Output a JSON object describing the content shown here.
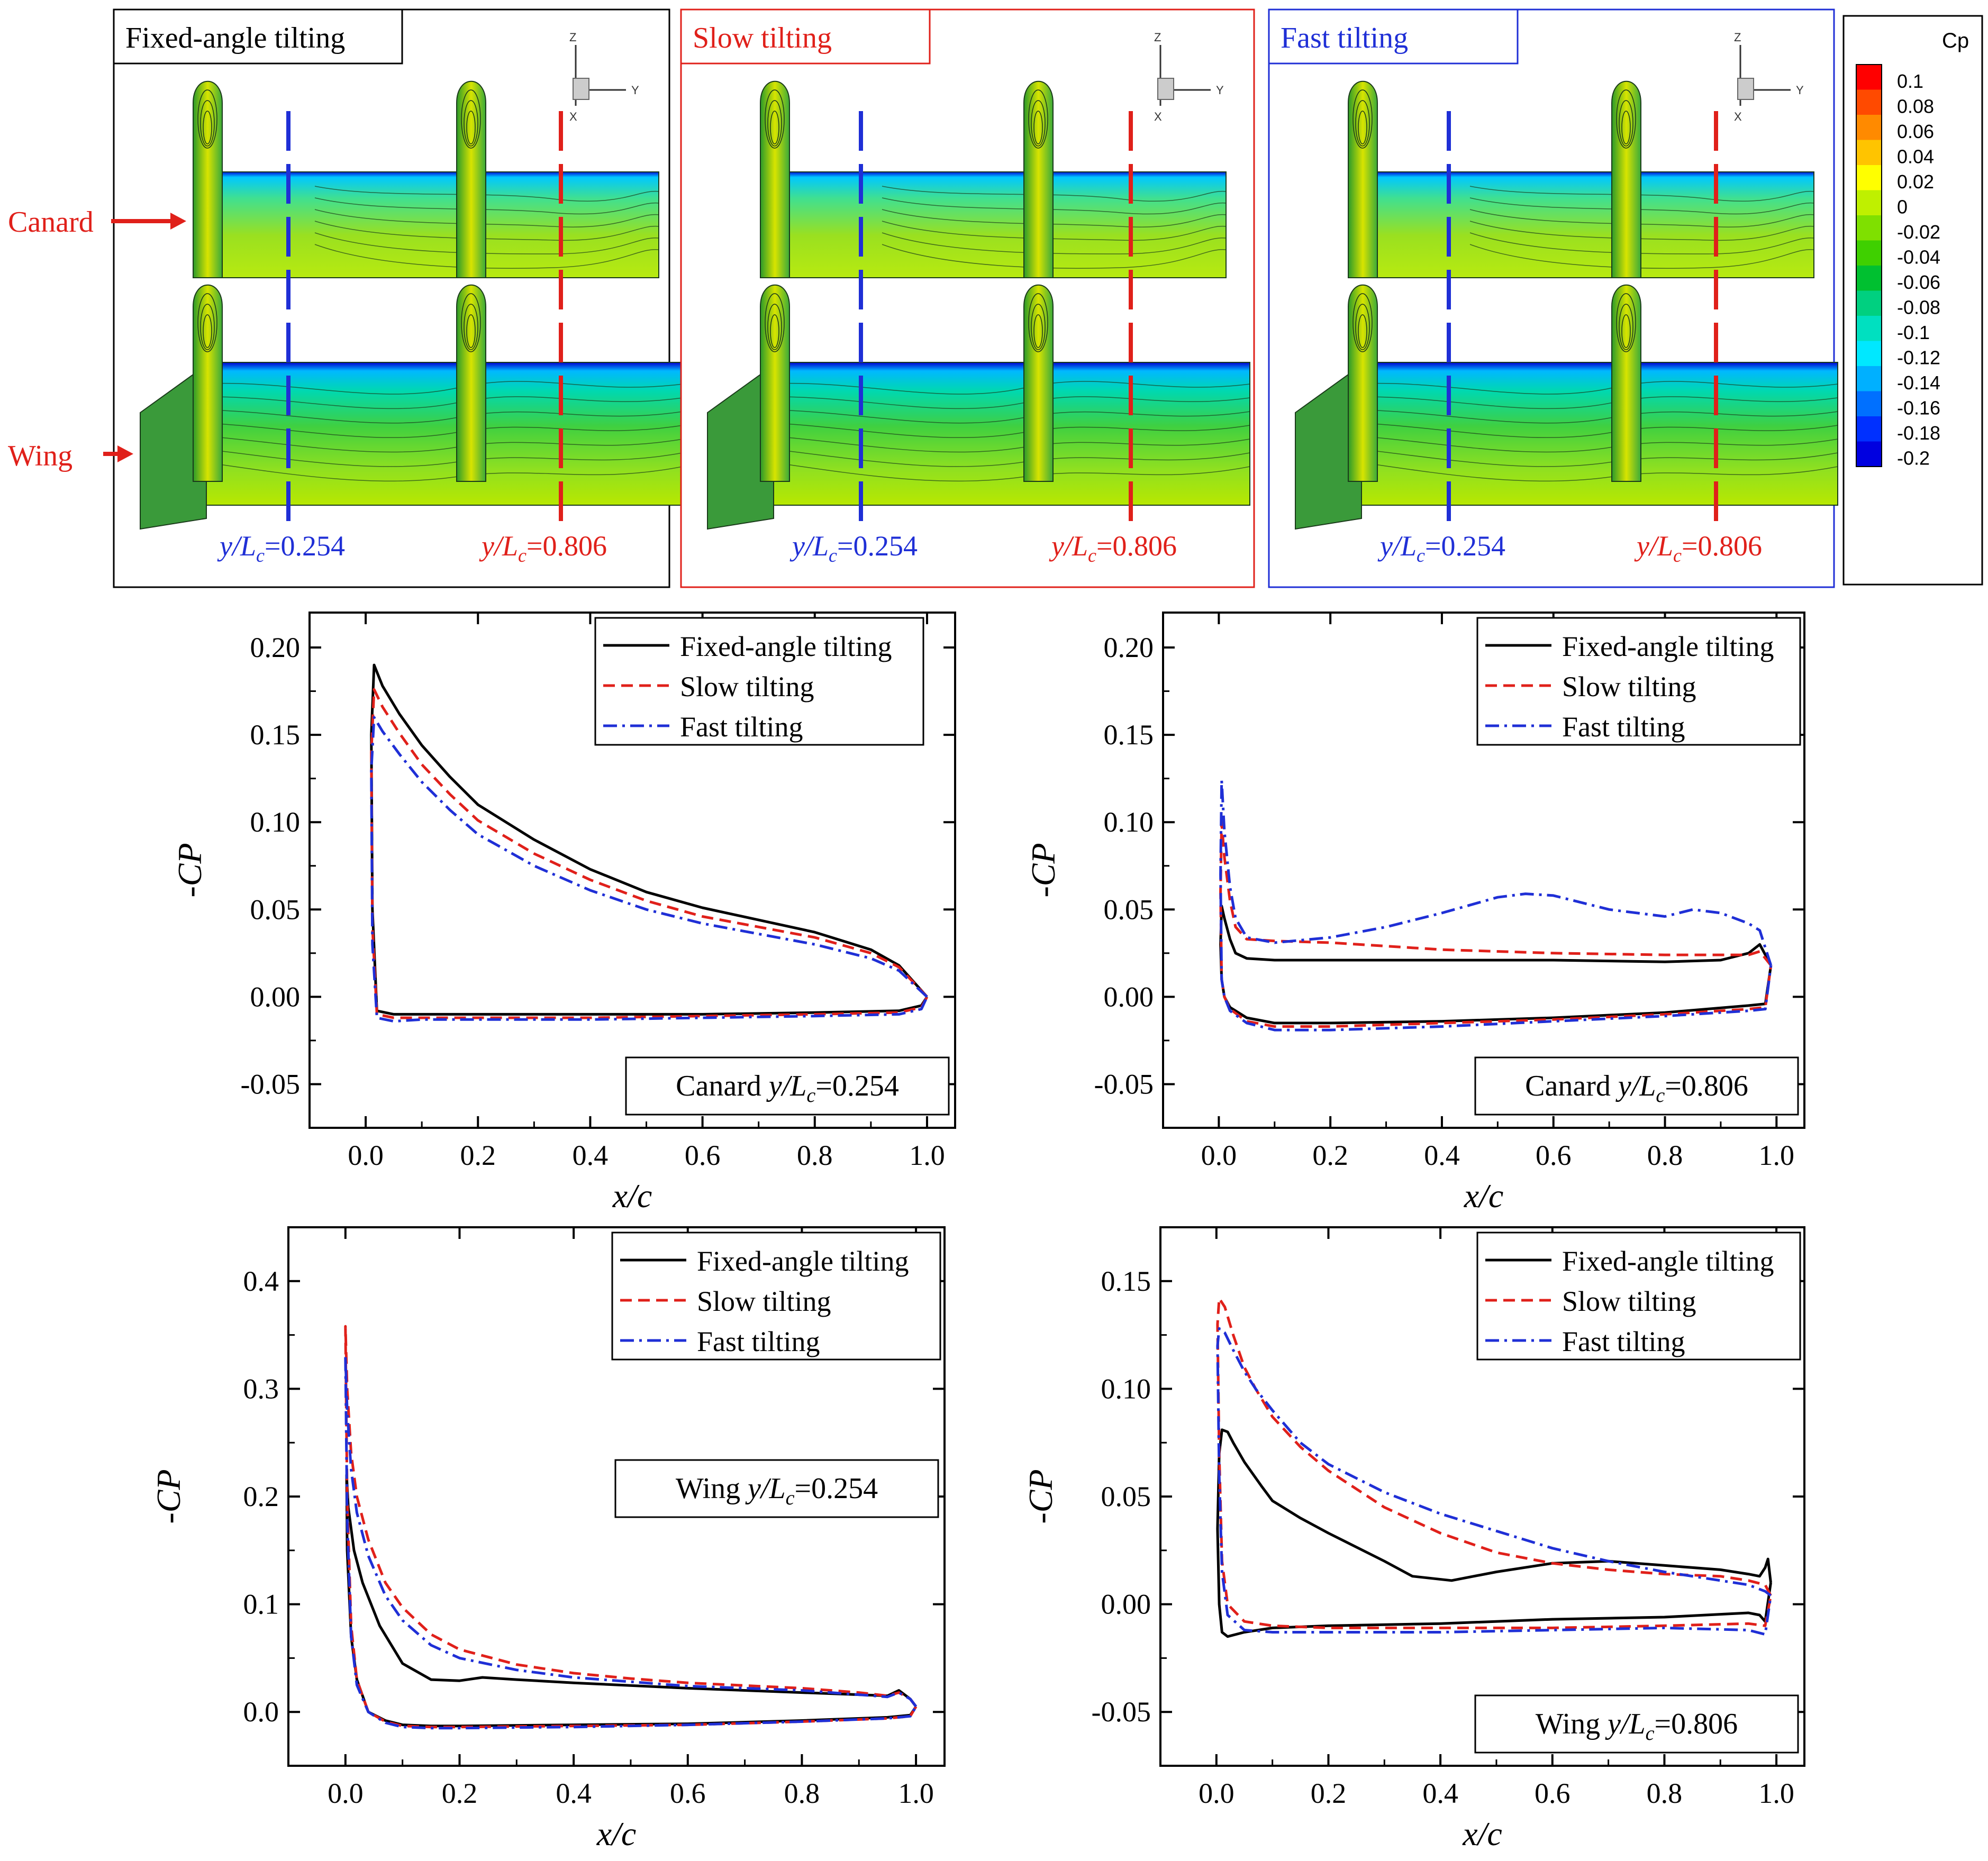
{
  "figure": {
    "panel_labels": [
      "Fixed-angle tilting",
      "Slow tilting",
      "Fast tilting"
    ],
    "panel_colors": [
      "#000000",
      "#e0201a",
      "#1f2fd6"
    ],
    "side_labels": {
      "canard": "Canard",
      "wing": "Wing"
    },
    "station_labels": {
      "low": "0.254",
      "high": "0.806",
      "prefix_y": "y",
      "prefix_L": "L",
      "sub": "c",
      "eq": "="
    },
    "axes_letters": {
      "z": "Z",
      "y": "Y",
      "x": "X"
    },
    "colorbar": {
      "title": "Cp",
      "levels": [
        "0.1",
        "0.08",
        "0.06",
        "0.04",
        "0.02",
        "0",
        "-0.02",
        "-0.04",
        "-0.06",
        "-0.08",
        "-0.1",
        "-0.12",
        "-0.14",
        "-0.16",
        "-0.18",
        "-0.2"
      ],
      "colors": [
        "#ff0000",
        "#ff4a00",
        "#ff8a00",
        "#ffc400",
        "#ffff00",
        "#bff000",
        "#7fe000",
        "#3fd000",
        "#00c030",
        "#00d080",
        "#00e0c0",
        "#00e8ff",
        "#00b0ff",
        "#0070ff",
        "#0030ff",
        "#0000e0"
      ]
    }
  },
  "chart_data": [
    {
      "type": "line",
      "title": "Canard y/Lc=0.254",
      "label_main": "Canard",
      "station": "0.254",
      "xlabel": "x/c",
      "ylabel": "-CP",
      "xlim": [
        -0.1,
        1.05
      ],
      "ylim": [
        -0.075,
        0.22
      ],
      "xticks": [
        0.0,
        0.2,
        0.4,
        0.6,
        0.8,
        1.0
      ],
      "xtick_labels": [
        "0.0",
        "0.2",
        "0.4",
        "0.6",
        "0.8",
        "1.0"
      ],
      "yticks": [
        -0.05,
        0.0,
        0.05,
        0.1,
        0.15,
        0.2
      ],
      "ytick_labels": [
        "-0.05",
        "0.00",
        "0.05",
        "0.10",
        "0.15",
        "0.20"
      ],
      "legend_position": "top-right",
      "series": [
        {
          "name": "Fixed-angle tilting",
          "color": "#000000",
          "dash": "solid",
          "x": [
            1.0,
            0.95,
            0.9,
            0.8,
            0.7,
            0.6,
            0.5,
            0.4,
            0.3,
            0.2,
            0.15,
            0.1,
            0.06,
            0.03,
            0.015,
            0.01,
            0.012,
            0.02,
            0.05,
            0.1,
            0.2,
            0.4,
            0.6,
            0.8,
            0.95,
            0.99,
            1.0
          ],
          "y": [
            0.0,
            0.018,
            0.027,
            0.037,
            0.044,
            0.051,
            0.06,
            0.073,
            0.09,
            0.11,
            0.126,
            0.144,
            0.162,
            0.178,
            0.19,
            0.15,
            0.05,
            -0.008,
            -0.01,
            -0.01,
            -0.01,
            -0.01,
            -0.01,
            -0.009,
            -0.008,
            -0.005,
            0.0
          ]
        },
        {
          "name": "Slow tilting",
          "color": "#e0201a",
          "dash": "dashed",
          "x": [
            1.0,
            0.95,
            0.9,
            0.8,
            0.7,
            0.6,
            0.5,
            0.4,
            0.3,
            0.2,
            0.15,
            0.1,
            0.06,
            0.03,
            0.015,
            0.01,
            0.012,
            0.02,
            0.05,
            0.1,
            0.2,
            0.4,
            0.6,
            0.8,
            0.95,
            0.99,
            1.0
          ],
          "y": [
            0.0,
            0.017,
            0.025,
            0.034,
            0.04,
            0.046,
            0.055,
            0.067,
            0.082,
            0.101,
            0.116,
            0.133,
            0.151,
            0.166,
            0.176,
            0.14,
            0.04,
            -0.01,
            -0.012,
            -0.012,
            -0.012,
            -0.012,
            -0.011,
            -0.01,
            -0.009,
            -0.006,
            0.0
          ]
        },
        {
          "name": "Fast tilting",
          "color": "#1f2fd6",
          "dash": "dashdot",
          "x": [
            1.0,
            0.95,
            0.9,
            0.8,
            0.7,
            0.6,
            0.5,
            0.4,
            0.3,
            0.2,
            0.15,
            0.1,
            0.06,
            0.03,
            0.015,
            0.01,
            0.012,
            0.02,
            0.05,
            0.1,
            0.2,
            0.4,
            0.6,
            0.8,
            0.95,
            0.99,
            1.0
          ],
          "y": [
            0.0,
            0.015,
            0.022,
            0.03,
            0.036,
            0.042,
            0.05,
            0.061,
            0.075,
            0.093,
            0.107,
            0.123,
            0.139,
            0.152,
            0.16,
            0.13,
            0.03,
            -0.012,
            -0.014,
            -0.013,
            -0.013,
            -0.013,
            -0.012,
            -0.011,
            -0.01,
            -0.007,
            0.0
          ]
        }
      ]
    },
    {
      "type": "line",
      "title": "Canard y/Lc=0.806",
      "label_main": "Canard",
      "station": "0.806",
      "xlabel": "x/c",
      "ylabel": "-CP",
      "xlim": [
        -0.1,
        1.05
      ],
      "ylim": [
        -0.075,
        0.22
      ],
      "xticks": [
        0.0,
        0.2,
        0.4,
        0.6,
        0.8,
        1.0
      ],
      "xtick_labels": [
        "0.0",
        "0.2",
        "0.4",
        "0.6",
        "0.8",
        "1.0"
      ],
      "yticks": [
        -0.05,
        0.0,
        0.05,
        0.1,
        0.15,
        0.2
      ],
      "ytick_labels": [
        "-0.05",
        "0.00",
        "0.05",
        "0.10",
        "0.15",
        "0.20"
      ],
      "legend_position": "top-right",
      "series": [
        {
          "name": "Fixed-angle tilting",
          "color": "#000000",
          "dash": "solid",
          "x": [
            0.99,
            0.97,
            0.95,
            0.9,
            0.8,
            0.6,
            0.4,
            0.2,
            0.1,
            0.05,
            0.03,
            0.02,
            0.01,
            0.005,
            0.003,
            0.005,
            0.01,
            0.02,
            0.05,
            0.1,
            0.2,
            0.4,
            0.6,
            0.8,
            0.95,
            0.98,
            0.99
          ],
          "y": [
            0.018,
            0.03,
            0.025,
            0.021,
            0.02,
            0.021,
            0.021,
            0.021,
            0.021,
            0.022,
            0.025,
            0.033,
            0.045,
            0.052,
            0.03,
            0.01,
            0.0,
            -0.006,
            -0.012,
            -0.015,
            -0.015,
            -0.014,
            -0.012,
            -0.009,
            -0.005,
            -0.004,
            0.018
          ]
        },
        {
          "name": "Slow tilting",
          "color": "#e0201a",
          "dash": "dashed",
          "x": [
            0.99,
            0.97,
            0.95,
            0.9,
            0.8,
            0.6,
            0.4,
            0.2,
            0.1,
            0.05,
            0.03,
            0.02,
            0.01,
            0.005,
            0.003,
            0.005,
            0.01,
            0.02,
            0.05,
            0.1,
            0.2,
            0.4,
            0.6,
            0.8,
            0.95,
            0.98,
            0.99
          ],
          "y": [
            0.018,
            0.026,
            0.024,
            0.024,
            0.024,
            0.025,
            0.027,
            0.031,
            0.032,
            0.033,
            0.04,
            0.055,
            0.08,
            0.1,
            0.06,
            0.01,
            0.0,
            -0.007,
            -0.014,
            -0.017,
            -0.017,
            -0.015,
            -0.013,
            -0.01,
            -0.007,
            -0.006,
            0.018
          ]
        },
        {
          "name": "Fast tilting",
          "color": "#1f2fd6",
          "dash": "dashdot",
          "x": [
            0.99,
            0.97,
            0.95,
            0.9,
            0.85,
            0.8,
            0.7,
            0.6,
            0.55,
            0.5,
            0.4,
            0.3,
            0.2,
            0.1,
            0.05,
            0.03,
            0.02,
            0.01,
            0.005,
            0.003,
            0.005,
            0.01,
            0.02,
            0.05,
            0.1,
            0.2,
            0.4,
            0.6,
            0.8,
            0.95,
            0.98,
            0.99
          ],
          "y": [
            0.018,
            0.038,
            0.042,
            0.048,
            0.05,
            0.046,
            0.05,
            0.058,
            0.059,
            0.057,
            0.048,
            0.04,
            0.034,
            0.031,
            0.034,
            0.045,
            0.063,
            0.095,
            0.124,
            0.07,
            0.01,
            0.0,
            -0.008,
            -0.015,
            -0.019,
            -0.019,
            -0.017,
            -0.014,
            -0.011,
            -0.008,
            -0.007,
            0.018
          ]
        }
      ]
    },
    {
      "type": "line",
      "title": "Wing y/Lc=0.254",
      "label_main": "Wing",
      "station": "0.254",
      "xlabel": "x/c",
      "ylabel": "-CP",
      "xlim": [
        -0.1,
        1.05
      ],
      "ylim": [
        -0.05,
        0.45
      ],
      "xticks": [
        0.0,
        0.2,
        0.4,
        0.6,
        0.8,
        1.0
      ],
      "xtick_labels": [
        "0.0",
        "0.2",
        "0.4",
        "0.6",
        "0.8",
        "1.0"
      ],
      "yticks": [
        0.0,
        0.1,
        0.2,
        0.3,
        0.4
      ],
      "ytick_labels": [
        "0.0",
        "0.1",
        "0.2",
        "0.3",
        "0.4"
      ],
      "legend_position": "top-right",
      "series": [
        {
          "name": "Fixed-angle tilting",
          "color": "#000000",
          "dash": "solid",
          "x": [
            1.0,
            0.99,
            0.97,
            0.95,
            0.9,
            0.8,
            0.6,
            0.4,
            0.3,
            0.24,
            0.2,
            0.15,
            0.1,
            0.06,
            0.03,
            0.015,
            0.005,
            0.002,
            0.003,
            0.01,
            0.02,
            0.04,
            0.07,
            0.1,
            0.15,
            0.2,
            0.4,
            0.6,
            0.8,
            0.95,
            0.99,
            1.0
          ],
          "y": [
            0.005,
            0.012,
            0.02,
            0.015,
            0.016,
            0.018,
            0.022,
            0.027,
            0.03,
            0.032,
            0.029,
            0.03,
            0.045,
            0.08,
            0.12,
            0.15,
            0.19,
            0.22,
            0.15,
            0.07,
            0.03,
            0.0,
            -0.008,
            -0.012,
            -0.013,
            -0.013,
            -0.012,
            -0.011,
            -0.008,
            -0.005,
            -0.003,
            0.005
          ]
        },
        {
          "name": "Slow tilting",
          "color": "#e0201a",
          "dash": "dashed",
          "x": [
            1.0,
            0.99,
            0.97,
            0.95,
            0.9,
            0.8,
            0.6,
            0.5,
            0.4,
            0.3,
            0.2,
            0.15,
            0.1,
            0.07,
            0.04,
            0.02,
            0.01,
            0.003,
            0.0,
            0.003,
            0.01,
            0.02,
            0.04,
            0.07,
            0.1,
            0.15,
            0.2,
            0.4,
            0.6,
            0.8,
            0.95,
            0.99,
            1.0
          ],
          "y": [
            0.005,
            0.012,
            0.018,
            0.015,
            0.018,
            0.022,
            0.027,
            0.031,
            0.036,
            0.044,
            0.058,
            0.072,
            0.097,
            0.12,
            0.16,
            0.2,
            0.24,
            0.3,
            0.358,
            0.2,
            0.08,
            0.03,
            0.0,
            -0.009,
            -0.013,
            -0.014,
            -0.014,
            -0.013,
            -0.012,
            -0.009,
            -0.006,
            -0.004,
            0.005
          ]
        },
        {
          "name": "Fast tilting",
          "color": "#1f2fd6",
          "dash": "dashdot",
          "x": [
            1.0,
            0.99,
            0.97,
            0.95,
            0.9,
            0.8,
            0.6,
            0.5,
            0.4,
            0.3,
            0.2,
            0.15,
            0.1,
            0.07,
            0.04,
            0.02,
            0.01,
            0.003,
            0.0,
            0.003,
            0.01,
            0.02,
            0.04,
            0.07,
            0.1,
            0.15,
            0.2,
            0.4,
            0.6,
            0.8,
            0.95,
            0.99,
            1.0
          ],
          "y": [
            0.005,
            0.012,
            0.018,
            0.014,
            0.016,
            0.02,
            0.024,
            0.028,
            0.032,
            0.039,
            0.05,
            0.062,
            0.085,
            0.108,
            0.145,
            0.185,
            0.225,
            0.28,
            0.33,
            0.18,
            0.07,
            0.025,
            0.0,
            -0.01,
            -0.014,
            -0.015,
            -0.015,
            -0.014,
            -0.012,
            -0.009,
            -0.006,
            -0.004,
            0.005
          ]
        }
      ]
    },
    {
      "type": "line",
      "title": "Wing y/Lc=0.806",
      "label_main": "Wing",
      "station": "0.806",
      "xlabel": "x/c",
      "ylabel": "-CP",
      "xlim": [
        -0.1,
        1.05
      ],
      "ylim": [
        -0.075,
        0.175
      ],
      "xticks": [
        0.0,
        0.2,
        0.4,
        0.6,
        0.8,
        1.0
      ],
      "xtick_labels": [
        "0.0",
        "0.2",
        "0.4",
        "0.6",
        "0.8",
        "1.0"
      ],
      "yticks": [
        -0.05,
        0.0,
        0.05,
        0.1,
        0.15
      ],
      "ytick_labels": [
        "-0.05",
        "0.00",
        "0.05",
        "0.10",
        "0.15"
      ],
      "legend_position": "top-right",
      "series": [
        {
          "name": "Fixed-angle tilting",
          "color": "#000000",
          "dash": "solid",
          "x": [
            0.99,
            0.985,
            0.98,
            0.97,
            0.95,
            0.9,
            0.8,
            0.7,
            0.6,
            0.5,
            0.42,
            0.35,
            0.3,
            0.2,
            0.15,
            0.1,
            0.08,
            0.05,
            0.03,
            0.02,
            0.01,
            0.005,
            0.002,
            0.005,
            0.01,
            0.02,
            0.05,
            0.1,
            0.2,
            0.4,
            0.6,
            0.8,
            0.95,
            0.97,
            0.98,
            0.99
          ],
          "y": [
            0.01,
            0.021,
            0.017,
            0.013,
            0.014,
            0.016,
            0.018,
            0.02,
            0.019,
            0.015,
            0.011,
            0.013,
            0.02,
            0.033,
            0.04,
            0.048,
            0.055,
            0.066,
            0.075,
            0.08,
            0.081,
            0.07,
            0.035,
            0.0,
            -0.013,
            -0.015,
            -0.013,
            -0.011,
            -0.01,
            -0.009,
            -0.007,
            -0.006,
            -0.004,
            -0.005,
            -0.008,
            0.01
          ]
        },
        {
          "name": "Slow tilting",
          "color": "#e0201a",
          "dash": "dashed",
          "x": [
            0.99,
            0.98,
            0.95,
            0.9,
            0.8,
            0.7,
            0.6,
            0.5,
            0.4,
            0.3,
            0.2,
            0.15,
            0.1,
            0.07,
            0.05,
            0.03,
            0.015,
            0.005,
            0.002,
            0.005,
            0.01,
            0.02,
            0.05,
            0.1,
            0.2,
            0.4,
            0.6,
            0.8,
            0.95,
            0.98,
            0.99
          ],
          "y": [
            0.004,
            0.009,
            0.011,
            0.013,
            0.014,
            0.016,
            0.019,
            0.024,
            0.033,
            0.045,
            0.062,
            0.073,
            0.087,
            0.1,
            0.11,
            0.125,
            0.138,
            0.142,
            0.13,
            0.07,
            0.02,
            0.0,
            -0.008,
            -0.01,
            -0.011,
            -0.011,
            -0.011,
            -0.01,
            -0.009,
            -0.01,
            0.004
          ]
        },
        {
          "name": "Fast tilting",
          "color": "#1f2fd6",
          "dash": "dashdot",
          "x": [
            0.99,
            0.98,
            0.95,
            0.9,
            0.8,
            0.7,
            0.6,
            0.5,
            0.4,
            0.3,
            0.2,
            0.15,
            0.1,
            0.07,
            0.05,
            0.03,
            0.015,
            0.005,
            0.002,
            0.005,
            0.01,
            0.02,
            0.05,
            0.1,
            0.2,
            0.4,
            0.6,
            0.8,
            0.95,
            0.98,
            0.99
          ],
          "y": [
            0.004,
            0.006,
            0.009,
            0.011,
            0.015,
            0.02,
            0.026,
            0.034,
            0.042,
            0.052,
            0.065,
            0.075,
            0.09,
            0.1,
            0.108,
            0.118,
            0.126,
            0.128,
            0.12,
            0.06,
            0.015,
            -0.005,
            -0.012,
            -0.013,
            -0.013,
            -0.013,
            -0.012,
            -0.011,
            -0.012,
            -0.014,
            0.004
          ]
        }
      ]
    }
  ]
}
